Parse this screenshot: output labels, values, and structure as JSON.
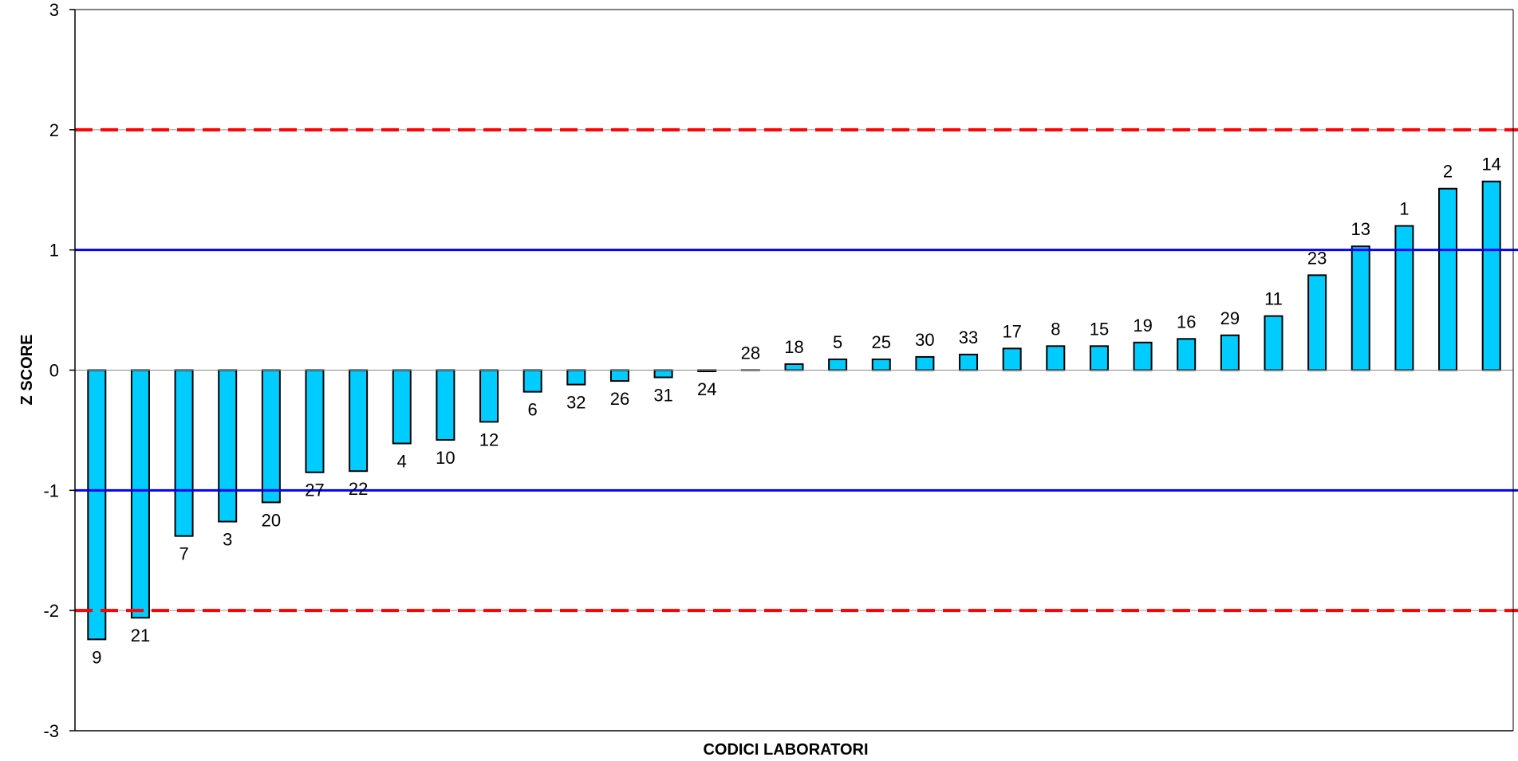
{
  "chart_data": {
    "type": "bar",
    "title": "",
    "xlabel": "CODICI LABORATORI",
    "ylabel": "Z SCORE",
    "ylim": [
      -3,
      3
    ],
    "yticks": [
      "-3",
      "-2",
      "-1",
      "0",
      "1",
      "2",
      "3"
    ],
    "grid": "horizontal at ±2",
    "categories": [
      "9",
      "21",
      "7",
      "3",
      "20",
      "27",
      "22",
      "4",
      "10",
      "12",
      "6",
      "32",
      "26",
      "31",
      "24",
      "28",
      "18",
      "5",
      "25",
      "30",
      "33",
      "17",
      "8",
      "15",
      "19",
      "16",
      "29",
      "11",
      "23",
      "13",
      "1",
      "2",
      "14"
    ],
    "values": [
      -2.24,
      -2.06,
      -1.38,
      -1.26,
      -1.1,
      -0.85,
      -0.84,
      -0.61,
      -0.58,
      -0.43,
      -0.18,
      -0.12,
      -0.09,
      -0.06,
      -0.01,
      0.0,
      0.05,
      0.09,
      0.09,
      0.11,
      0.13,
      0.18,
      0.2,
      0.2,
      0.23,
      0.26,
      0.29,
      0.45,
      0.79,
      1.03,
      1.2,
      1.51,
      1.57
    ],
    "reference_lines": [
      {
        "value": 2,
        "color": "#ff0000",
        "style": "dashed"
      },
      {
        "value": -2,
        "color": "#ff0000",
        "style": "dashed"
      },
      {
        "value": 1,
        "color": "#0000ff",
        "style": "solid"
      },
      {
        "value": -1,
        "color": "#0000ff",
        "style": "solid"
      }
    ],
    "bar_color": "#00ccff",
    "bar_border_color": "#000000"
  }
}
